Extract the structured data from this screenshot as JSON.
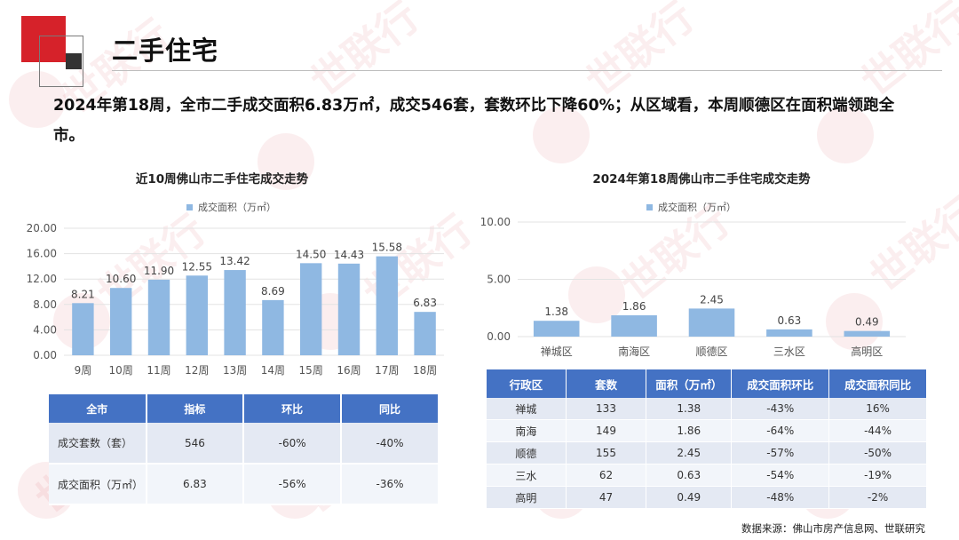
{
  "header": {
    "title": "二手住宅"
  },
  "headline": "2024年第18周，全市二手成交面积6.83万㎡，成交546套，套数环比下降60%；从区域看，本周顺德区在面积端领跑全市。",
  "watermark": {
    "text": "世联行"
  },
  "chart_data": [
    {
      "type": "bar",
      "title": "近10周佛山市二手住宅成交走势",
      "categories": [
        "9周",
        "10周",
        "11周",
        "12周",
        "13周",
        "14周",
        "15周",
        "16周",
        "17周",
        "18周"
      ],
      "series": [
        {
          "name": "成交面积（万㎡）",
          "values": [
            8.21,
            10.6,
            11.9,
            12.55,
            13.42,
            8.69,
            14.5,
            14.43,
            15.58,
            6.83
          ]
        }
      ],
      "value_labels": [
        "8.21",
        "10.60",
        "11.90",
        "12.55",
        "13.42",
        "8.69",
        "14.50",
        "14.43",
        "15.58",
        "6.83"
      ],
      "ylim": [
        0,
        20
      ],
      "yticks": [
        "0.00",
        "4.00",
        "8.00",
        "12.00",
        "16.00",
        "20.00"
      ],
      "legend": "top-center",
      "grid": true,
      "color": "#8fb8e2"
    },
    {
      "type": "bar",
      "title": "2024年第18周佛山市二手住宅成交走势",
      "categories": [
        "禅城区",
        "南海区",
        "顺德区",
        "三水区",
        "高明区"
      ],
      "series": [
        {
          "name": "成交面积（万㎡）",
          "values": [
            1.38,
            1.86,
            2.45,
            0.63,
            0.49
          ]
        }
      ],
      "value_labels": [
        "1.38",
        "1.86",
        "2.45",
        "0.63",
        "0.49"
      ],
      "ylim": [
        0,
        10
      ],
      "yticks": [
        "0.00",
        "5.00",
        "10.00"
      ],
      "legend": "top-center",
      "grid": true,
      "color": "#8fb8e2"
    }
  ],
  "table_city": {
    "headers": [
      "全市",
      "指标",
      "环比",
      "同比"
    ],
    "rows": [
      [
        "成交套数（套）",
        "546",
        "-60%",
        "-40%"
      ],
      [
        "成交面积（万㎡）",
        "6.83",
        "-56%",
        "-36%"
      ]
    ]
  },
  "table_district": {
    "headers": [
      "行政区",
      "套数",
      "面积（万㎡）",
      "成交面积环比",
      "成交面积同比"
    ],
    "rows": [
      [
        "禅城",
        "133",
        "1.38",
        "-43%",
        "16%"
      ],
      [
        "南海",
        "149",
        "1.86",
        "-64%",
        "-44%"
      ],
      [
        "顺德",
        "155",
        "2.45",
        "-57%",
        "-50%"
      ],
      [
        "三水",
        "62",
        "0.63",
        "-54%",
        "-19%"
      ],
      [
        "高明",
        "47",
        "0.49",
        "-48%",
        "-2%"
      ]
    ]
  },
  "source": "数据来源：佛山市房产信息网、世联研究"
}
